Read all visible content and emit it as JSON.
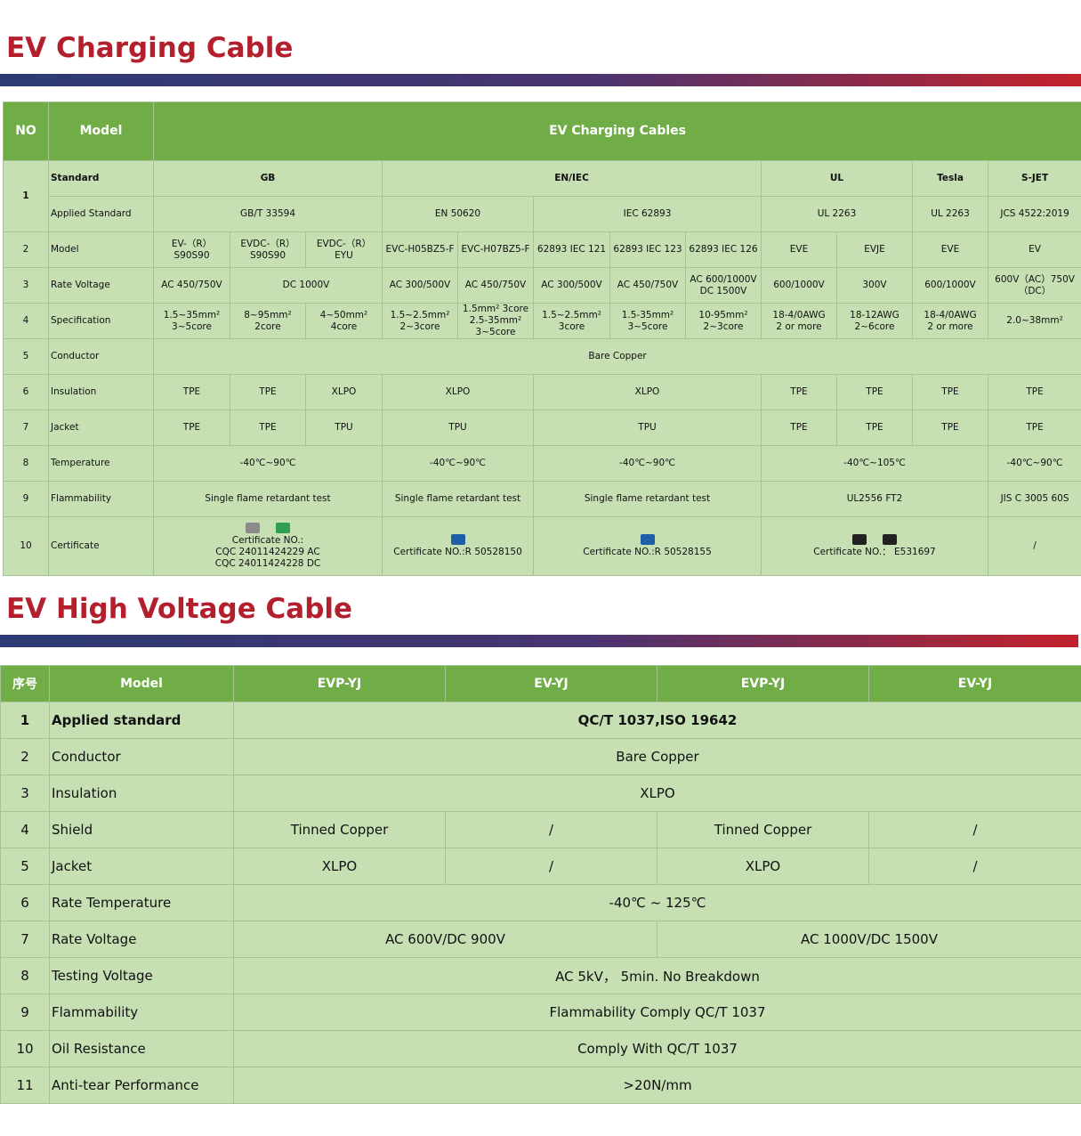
{
  "sections": [
    {
      "title": "EV Charging Cable",
      "table": {
        "header": [
          "NO",
          "Model",
          "EV Charging Cables"
        ],
        "rows": [
          [
            "1",
            "Standard",
            "GB",
            "EN/IEC",
            "UL",
            "Tesla",
            "S-JET"
          ],
          [
            "Applied Standard",
            "GB/T 33594",
            "EN 50620",
            "IEC 62893",
            "UL 2263",
            "UL 2263",
            "JCS 4522:2019"
          ],
          [
            "2",
            "Model",
            "EV-（R）\nS90S90",
            "EVDC-（R）\nS90S90",
            "EVDC-（R）EYU",
            "EVC-H05BZ5-F",
            "EVC-H07BZ5-F",
            "62893 IEC 121",
            "62893 IEC 123",
            "62893 IEC 126",
            "EVE",
            "EVJE",
            "EVE",
            "EV"
          ],
          [
            "3",
            "Rate Voltage",
            "AC 450/750V",
            "DC 1000V",
            "AC 300/500V",
            "AC 450/750V",
            "AC  300/500V",
            "AC 450/750V",
            "AC 600/1000V\nDC 1500V",
            "600/1000V",
            "300V",
            "600/1000V",
            "600V（AC）750V\n（DC）"
          ],
          [
            "4",
            "Specification",
            "1.5~35mm²\n3~5core",
            "8~95mm²\n2core",
            "4~50mm²\n4core",
            "1.5~2.5mm²\n2~3core",
            "1.5mm²  3core\n2.5-35mm²\n3~5core",
            "1.5~2.5mm²\n3core",
            "1.5-35mm²\n3~5core",
            "10-95mm²\n2~3core",
            "18-4/0AWG\n2 or more",
            "18-12AWG\n2~6core",
            "18-4/0AWG\n2 or more",
            "2.0~38mm²"
          ],
          [
            "5",
            "Conductor",
            "Bare Copper"
          ],
          [
            "6",
            "Insulation",
            "TPE",
            "TPE",
            "XLPO",
            "XLPO",
            "XLPO",
            "TPE",
            "TPE",
            "TPE",
            "TPE"
          ],
          [
            "7",
            "Jacket",
            "TPE",
            "TPE",
            "TPU",
            "TPU",
            "TPU",
            "TPE",
            "TPE",
            "TPE",
            "TPE"
          ],
          [
            "8",
            "Temperature",
            "-40℃~90℃",
            "-40℃~90℃",
            "-40℃~90℃",
            "-40℃~105℃",
            "-40℃~90℃"
          ],
          [
            "9",
            "Flammability",
            "Single flame retardant test",
            "Single flame retardant test",
            "Single flame retardant test",
            "UL2556 FT2",
            "JIS C 3005 60S"
          ],
          [
            "10",
            "Certificate",
            "Certificate NO.:\nCQC 24011424229   AC\nCQC 24011424228   DC",
            "Certificate NO.:R 50528150",
            "Certificate NO.:R 50528155",
            "Certificate NO.： E531697",
            "/"
          ]
        ]
      }
    },
    {
      "title": "EV High Voltage Cable",
      "table": {
        "header": [
          "序号",
          "Model",
          "EVP-YJ",
          "EV-YJ",
          "EVP-YJ",
          "EV-YJ"
        ],
        "rows": [
          [
            "1",
            "Applied standard",
            "QC/T 1037,ISO 19642"
          ],
          [
            "2",
            "Conductor",
            "Bare Copper"
          ],
          [
            "3",
            "Insulation",
            "XLPO"
          ],
          [
            "4",
            "Shield",
            "Tinned Copper",
            "/",
            "Tinned Copper",
            "/"
          ],
          [
            "5",
            "Jacket",
            "XLPO",
            "/",
            "XLPO",
            "/"
          ],
          [
            "6",
            "Rate Temperature",
            "-40℃ ~ 125℃"
          ],
          [
            "7",
            "Rate Voltage",
            "AC 600V/DC 900V",
            "AC 1000V/DC 1500V"
          ],
          [
            "8",
            "Testing Voltage",
            "AC 5kV，  5min. No Breakdown"
          ],
          [
            "9",
            "Flammability",
            "Flammability Comply QC/T 1037"
          ],
          [
            "10",
            "Oil Resistance",
            "Comply With QC/T 1037"
          ],
          [
            "11",
            "Anti-tear Performance",
            "&gt;20N/mm"
          ]
        ]
      }
    }
  ]
}
